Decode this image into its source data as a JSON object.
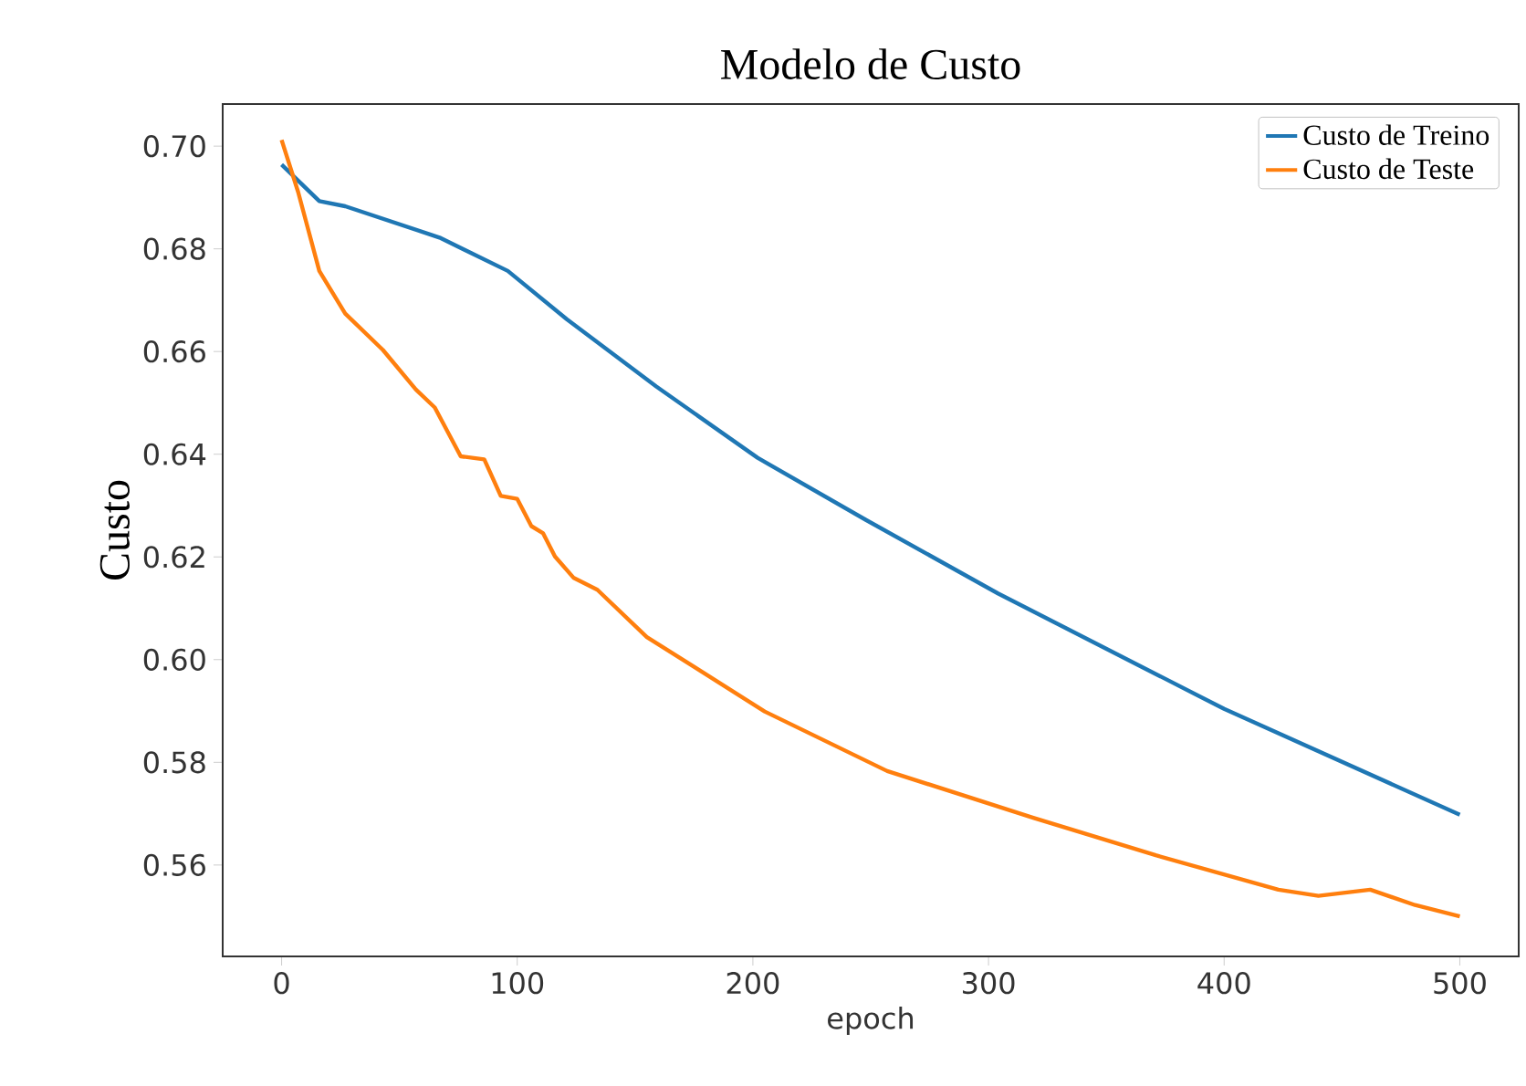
{
  "chart_data": {
    "type": "line",
    "title": "Modelo de Custo",
    "xlabel": "epoch",
    "ylabel": "Custo",
    "xlim": [
      -25,
      525
    ],
    "ylim": [
      0.5422,
      0.7082
    ],
    "xticks": [
      0,
      100,
      200,
      300,
      400,
      500
    ],
    "yticks": [
      {
        "value": 0.56,
        "label": "0.56"
      },
      {
        "value": 0.58,
        "label": "0.58"
      },
      {
        "value": 0.6,
        "label": "0.60"
      },
      {
        "value": 0.62,
        "label": "0.62"
      },
      {
        "value": 0.64,
        "label": "0.64"
      },
      {
        "value": 0.66,
        "label": "0.66"
      },
      {
        "value": 0.68,
        "label": "0.68"
      },
      {
        "value": 0.7,
        "label": "0.70"
      }
    ],
    "legend": "top right",
    "grid": false,
    "marker": "none",
    "line_style": "solid",
    "series": [
      {
        "name": "Custo de Treino",
        "color": "#1f77b4",
        "x": [
          0,
          16,
          27,
          67,
          96,
          121,
          159,
          202,
          248,
          304,
          400,
          500
        ],
        "values": [
          0.6964,
          0.6893,
          0.6883,
          0.6822,
          0.6757,
          0.6663,
          0.6532,
          0.6393,
          0.6272,
          0.6129,
          0.5904,
          0.5698
        ]
      },
      {
        "name": "Custo de Teste",
        "color": "#ff7f0e",
        "x": [
          0,
          7,
          16,
          27,
          43,
          57,
          65,
          76,
          86,
          93,
          100,
          106,
          111,
          116,
          124,
          134,
          155,
          205,
          257,
          319,
          371,
          423,
          440,
          462,
          481,
          500
        ],
        "values": [
          0.7012,
          0.6911,
          0.6757,
          0.6674,
          0.6603,
          0.6526,
          0.6491,
          0.6396,
          0.639,
          0.6319,
          0.6313,
          0.626,
          0.6246,
          0.6201,
          0.6159,
          0.6136,
          0.6044,
          0.5899,
          0.5783,
          0.5692,
          0.5619,
          0.5552,
          0.554,
          0.5552,
          0.5522,
          0.55
        ]
      }
    ]
  }
}
